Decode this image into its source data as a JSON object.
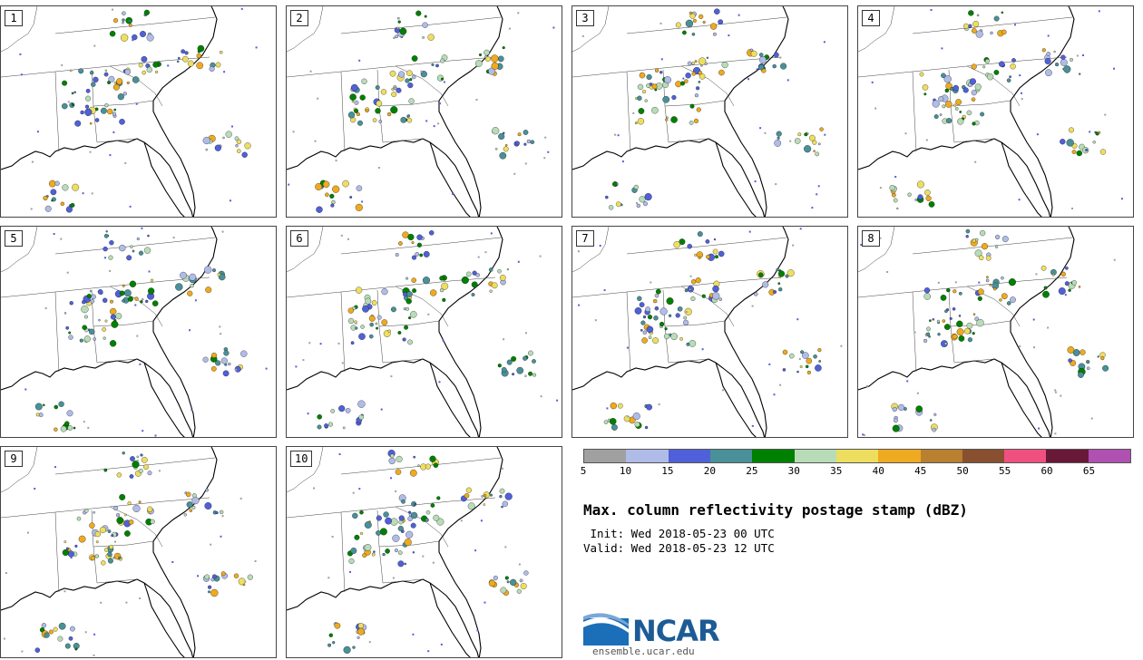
{
  "panels": [
    {
      "label": "1"
    },
    {
      "label": "2"
    },
    {
      "label": "3"
    },
    {
      "label": "4"
    },
    {
      "label": "5"
    },
    {
      "label": "6"
    },
    {
      "label": "7"
    },
    {
      "label": "8"
    },
    {
      "label": "9"
    },
    {
      "label": "10"
    }
  ],
  "colorbar": {
    "colors": [
      "#a0a0a0",
      "#b0bce8",
      "#5060d8",
      "#4a9098",
      "#008000",
      "#b8dcb8",
      "#eede60",
      "#eeaa20",
      "#b88030",
      "#885030",
      "#f05080",
      "#6a1838",
      "#b050b0"
    ],
    "ticks": [
      "5",
      "10",
      "15",
      "20",
      "25",
      "30",
      "35",
      "40",
      "45",
      "50",
      "55",
      "60",
      "65"
    ]
  },
  "title": "Max. column reflectivity postage stamp (dBZ)",
  "init": " Init: Wed 2018-05-23 00 UTC",
  "valid": "Valid: Wed 2018-05-23 12 UTC",
  "logo": {
    "name": "NCAR",
    "url": "ensemble.ucar.edu"
  }
}
